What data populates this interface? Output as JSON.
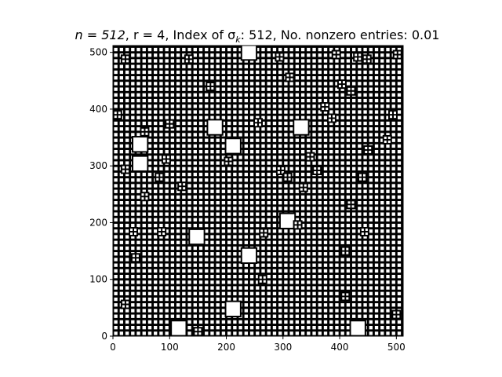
{
  "chart_data": {
    "type": "heatmap",
    "title": {
      "n_part": "n = 512",
      "r_part": ", r = 4",
      "index_prefix": ", Index of σ",
      "index_sub": "k",
      "index_suffix": ": 512",
      "nonzero": ", No. nonzero entries: 0.01"
    },
    "xlim": [
      0,
      512
    ],
    "ylim": [
      0,
      512
    ],
    "xticks": [
      0,
      100,
      200,
      300,
      400,
      500
    ],
    "yticks": [
      0,
      100,
      200,
      300,
      400,
      500
    ],
    "grid": false,
    "colors": {
      "zero": "#000000",
      "nonzero": "#ffffff",
      "axes": "#000000"
    },
    "pattern": {
      "block_size": 10,
      "block_fill": 0.6,
      "description_units": "data"
    },
    "large_blocks": [
      [
        240,
        500
      ],
      [
        180,
        368
      ],
      [
        332,
        368
      ],
      [
        48,
        338
      ],
      [
        212,
        335
      ],
      [
        48,
        304
      ],
      [
        308,
        203
      ],
      [
        148,
        175
      ],
      [
        240,
        142
      ],
      [
        212,
        48
      ],
      [
        116,
        14
      ],
      [
        432,
        14
      ]
    ],
    "markers": [
      [
        22,
        488
      ],
      [
        134,
        488
      ],
      [
        294,
        492
      ],
      [
        394,
        496
      ],
      [
        432,
        492
      ],
      [
        448,
        488
      ],
      [
        502,
        496
      ],
      [
        312,
        456
      ],
      [
        172,
        440
      ],
      [
        404,
        444
      ],
      [
        420,
        432
      ],
      [
        374,
        404
      ],
      [
        386,
        384
      ],
      [
        8,
        390
      ],
      [
        100,
        374
      ],
      [
        256,
        376
      ],
      [
        56,
        360
      ],
      [
        450,
        328
      ],
      [
        94,
        312
      ],
      [
        204,
        308
      ],
      [
        348,
        316
      ],
      [
        22,
        294
      ],
      [
        296,
        292
      ],
      [
        308,
        280
      ],
      [
        360,
        292
      ],
      [
        82,
        280
      ],
      [
        122,
        264
      ],
      [
        336,
        262
      ],
      [
        440,
        280
      ],
      [
        56,
        246
      ],
      [
        420,
        232
      ],
      [
        484,
        346
      ],
      [
        494,
        390
      ],
      [
        326,
        196
      ],
      [
        36,
        184
      ],
      [
        86,
        184
      ],
      [
        266,
        182
      ],
      [
        444,
        184
      ],
      [
        40,
        138
      ],
      [
        410,
        150
      ],
      [
        264,
        100
      ],
      [
        22,
        56
      ],
      [
        410,
        70
      ],
      [
        150,
        8
      ],
      [
        500,
        38
      ]
    ]
  }
}
